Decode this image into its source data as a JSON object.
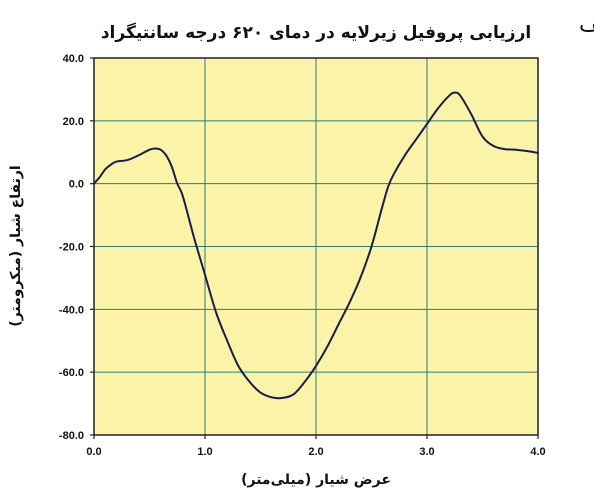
{
  "panel_label": "الف",
  "chart_data": {
    "type": "line",
    "title": "ارزیابی پروفیل زیرلایه در دمای ۶۲۰ درجه سانتیگراد",
    "xlabel": "عرض شیار (میلی‌متر)",
    "ylabel": "ارتفاع شیار (میکرومتر)",
    "xlim": [
      0.0,
      4.0
    ],
    "ylim": [
      -80.0,
      40.0
    ],
    "x_ticks": [
      "0.0",
      "1.0",
      "2.0",
      "3.0",
      "4.0"
    ],
    "y_ticks": [
      "40.0",
      "20.0",
      "0.0",
      "-20.0",
      "-40.0",
      "-60.0",
      "-80.0"
    ],
    "x_gridlines": [
      1.0,
      2.0,
      3.0
    ],
    "y_gridlines": [
      20.0,
      0.0,
      -20.0,
      -40.0,
      -60.0
    ],
    "grid": true,
    "plot_background": "#fbf3a8",
    "line_color": "#1c1c4a",
    "series": [
      {
        "x": [
          0.0,
          0.05,
          0.1,
          0.15,
          0.2,
          0.3,
          0.4,
          0.5,
          0.55,
          0.6,
          0.65,
          0.7,
          0.75,
          0.8,
          0.9,
          1.0,
          1.1,
          1.2,
          1.3,
          1.4,
          1.5,
          1.6,
          1.7,
          1.8,
          1.9,
          2.0,
          2.1,
          2.2,
          2.3,
          2.4,
          2.5,
          2.6,
          2.65,
          2.7,
          2.8,
          2.9,
          3.0,
          3.1,
          3.2,
          3.25,
          3.3,
          3.4,
          3.5,
          3.6,
          3.7,
          3.8,
          3.9,
          4.0
        ],
        "y": [
          0.0,
          2.0,
          4.5,
          6.0,
          7.0,
          7.5,
          9.0,
          10.8,
          11.2,
          10.8,
          9.0,
          5.5,
          0.0,
          -4.0,
          -17.0,
          -29.0,
          -41.0,
          -50.0,
          -58.0,
          -63.0,
          -66.5,
          -68.0,
          -68.2,
          -67.0,
          -63.0,
          -58.0,
          -52.0,
          -45.0,
          -38.0,
          -30.0,
          -20.0,
          -7.0,
          -1.0,
          3.0,
          9.0,
          14.0,
          19.0,
          24.0,
          28.0,
          29.0,
          28.0,
          22.0,
          15.0,
          12.0,
          11.0,
          10.8,
          10.4,
          9.8
        ]
      }
    ]
  }
}
